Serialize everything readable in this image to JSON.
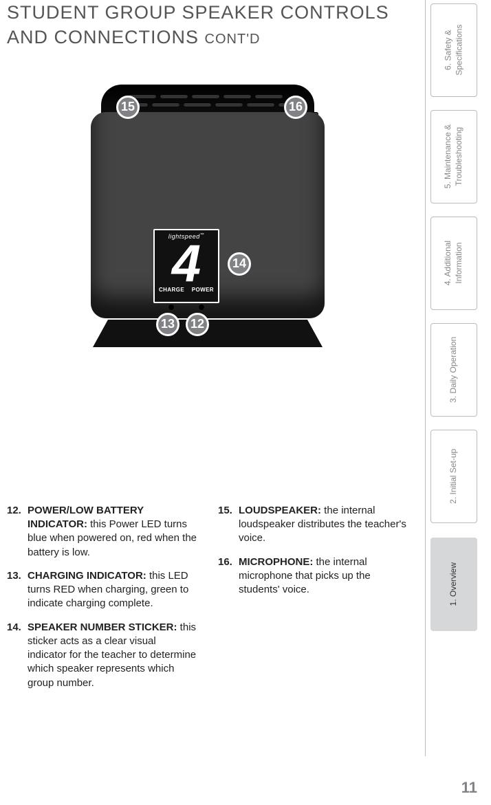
{
  "title_line1": "STUDENT GROUP SPEAKER CONTROLS",
  "title_line2": "AND CONNECTIONS",
  "title_contd": "CONT'D",
  "page_number": "11",
  "tabs": {
    "t1": "1. Overview",
    "t2": "2. Initial Set-up",
    "t3": "3. Daily Operation",
    "t4": "4. Additional\nInformation",
    "t5": "5. Maintenance &\nTroubleshooting",
    "t6": "6. Safety &\nSpecifications"
  },
  "diagram": {
    "brand": "lightspeed",
    "brand_tm": "™",
    "panel_number": "4",
    "label_left": "CHARGE",
    "label_right": "POWER",
    "callouts": {
      "c15": "15",
      "c16": "16",
      "c14": "14",
      "c13": "13",
      "c12": "12"
    },
    "colors": {
      "body": "#444444",
      "dark": "#111111",
      "callout_bg": "#808285",
      "callout_border": "#ffffff"
    }
  },
  "items_left": [
    {
      "num": "12.",
      "lead": "POWER/LOW BATTERY INDICATOR:",
      "text": " this Power LED turns blue when powered on, red when the battery is low."
    },
    {
      "num": "13.",
      "lead": "CHARGING INDICATOR:",
      "text": " this LED turns RED when charging, green to indicate charging complete."
    },
    {
      "num": "14.",
      "lead": "SPEAKER NUMBER STICKER:",
      "text": " this sticker acts as a clear visual indicator for the teacher to determine which speaker represents which group number."
    }
  ],
  "items_right": [
    {
      "num": "15.",
      "lead": "LOUDSPEAKER:",
      "text": " the internal loudspeaker distributes the teacher's voice."
    },
    {
      "num": "16.",
      "lead": "MICROPHONE:",
      "text": " the internal microphone that picks up the students' voice."
    }
  ]
}
